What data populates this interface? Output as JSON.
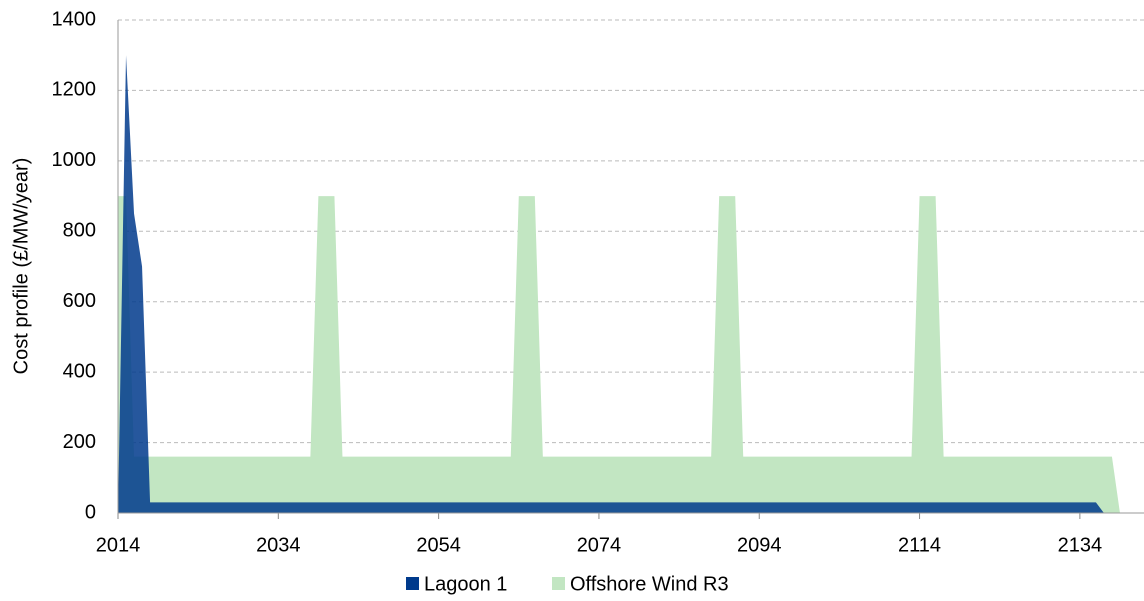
{
  "chart_data": {
    "type": "area",
    "y_label": "Cost profile (£/MW/year)",
    "x": [
      2014,
      2015,
      2016,
      2017,
      2018,
      2019,
      2020,
      2021,
      2022,
      2023,
      2024,
      2025,
      2026,
      2027,
      2028,
      2029,
      2030,
      2031,
      2032,
      2033,
      2034,
      2035,
      2036,
      2037,
      2038,
      2039,
      2040,
      2041,
      2042,
      2043,
      2044,
      2045,
      2046,
      2047,
      2048,
      2049,
      2050,
      2051,
      2052,
      2053,
      2054,
      2055,
      2056,
      2057,
      2058,
      2059,
      2060,
      2061,
      2062,
      2063,
      2064,
      2065,
      2066,
      2067,
      2068,
      2069,
      2070,
      2071,
      2072,
      2073,
      2074,
      2075,
      2076,
      2077,
      2078,
      2079,
      2080,
      2081,
      2082,
      2083,
      2084,
      2085,
      2086,
      2087,
      2088,
      2089,
      2090,
      2091,
      2092,
      2093,
      2094,
      2095,
      2096,
      2097,
      2098,
      2099,
      2100,
      2101,
      2102,
      2103,
      2104,
      2105,
      2106,
      2107,
      2108,
      2109,
      2110,
      2111,
      2112,
      2113,
      2114,
      2115,
      2116,
      2117,
      2118,
      2119,
      2120,
      2121,
      2122,
      2123,
      2124,
      2125,
      2126,
      2127,
      2128,
      2129,
      2130,
      2131,
      2132,
      2133,
      2134,
      2135,
      2136,
      2137,
      2138,
      2139
    ],
    "series": [
      {
        "name": "Lagoon 1",
        "color": "#003a8c",
        "values": [
          0,
          1300,
          850,
          700,
          30,
          30,
          30,
          30,
          30,
          30,
          30,
          30,
          30,
          30,
          30,
          30,
          30,
          30,
          30,
          30,
          30,
          30,
          30,
          30,
          30,
          30,
          30,
          30,
          30,
          30,
          30,
          30,
          30,
          30,
          30,
          30,
          30,
          30,
          30,
          30,
          30,
          30,
          30,
          30,
          30,
          30,
          30,
          30,
          30,
          30,
          30,
          30,
          30,
          30,
          30,
          30,
          30,
          30,
          30,
          30,
          30,
          30,
          30,
          30,
          30,
          30,
          30,
          30,
          30,
          30,
          30,
          30,
          30,
          30,
          30,
          30,
          30,
          30,
          30,
          30,
          30,
          30,
          30,
          30,
          30,
          30,
          30,
          30,
          30,
          30,
          30,
          30,
          30,
          30,
          30,
          30,
          30,
          30,
          30,
          30,
          30,
          30,
          30,
          30,
          30,
          30,
          30,
          30,
          30,
          30,
          30,
          30,
          30,
          30,
          30,
          30,
          30,
          30,
          30,
          30,
          30,
          30,
          30,
          0,
          0,
          0
        ]
      },
      {
        "name": "Offshore Wind R3",
        "color": "#c2e6c2",
        "values": [
          900,
          900,
          160,
          160,
          160,
          160,
          160,
          160,
          160,
          160,
          160,
          160,
          160,
          160,
          160,
          160,
          160,
          160,
          160,
          160,
          160,
          160,
          160,
          160,
          160,
          900,
          900,
          900,
          160,
          160,
          160,
          160,
          160,
          160,
          160,
          160,
          160,
          160,
          160,
          160,
          160,
          160,
          160,
          160,
          160,
          160,
          160,
          160,
          160,
          160,
          900,
          900,
          900,
          160,
          160,
          160,
          160,
          160,
          160,
          160,
          160,
          160,
          160,
          160,
          160,
          160,
          160,
          160,
          160,
          160,
          160,
          160,
          160,
          160,
          160,
          900,
          900,
          900,
          160,
          160,
          160,
          160,
          160,
          160,
          160,
          160,
          160,
          160,
          160,
          160,
          160,
          160,
          160,
          160,
          160,
          160,
          160,
          160,
          160,
          160,
          900,
          900,
          900,
          160,
          160,
          160,
          160,
          160,
          160,
          160,
          160,
          160,
          160,
          160,
          160,
          160,
          160,
          160,
          160,
          160,
          160,
          160,
          160,
          160,
          160,
          0
        ]
      }
    ],
    "xlim": [
      2014,
      2142
    ],
    "xticks": [
      2014,
      2034,
      2054,
      2074,
      2094,
      2114,
      2134
    ],
    "ylim": [
      0,
      1400
    ],
    "yticks": [
      0,
      200,
      400,
      600,
      800,
      1000,
      1200,
      1400
    ],
    "grid": true,
    "legend": "bottom"
  }
}
